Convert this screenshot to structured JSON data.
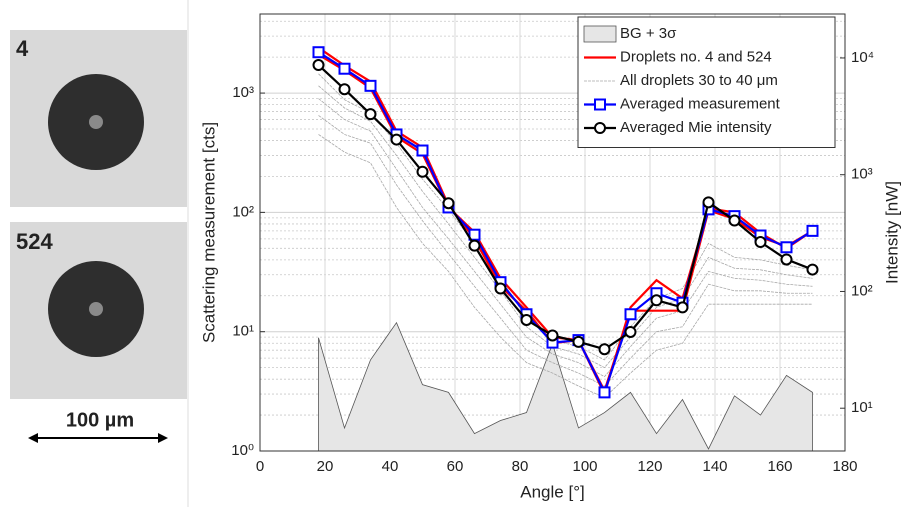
{
  "images": {
    "labels": [
      "4",
      "524"
    ],
    "scale_bar": "100 µm"
  },
  "chart_data": {
    "type": "line",
    "xlabel": "Angle  [°]",
    "ylabel": "Scattering measurement [cts]",
    "y2label": "Intensity [nW]",
    "x": [
      18,
      26,
      34,
      42,
      50,
      58,
      66,
      74,
      82,
      90,
      98,
      106,
      114,
      122,
      130,
      138,
      146,
      154,
      162,
      170
    ],
    "xlim": [
      0,
      180
    ],
    "xticks": [
      0,
      20,
      40,
      60,
      80,
      100,
      120,
      140,
      160,
      180
    ],
    "ylim": [
      1,
      4600
    ],
    "ylog": true,
    "yticks": [
      {
        "value": 1,
        "label": "10⁰"
      },
      {
        "value": 10,
        "label": "10¹"
      },
      {
        "value": 100,
        "label": "10²"
      },
      {
        "value": 1000,
        "label": "10³"
      }
    ],
    "y2lim": [
      4.3,
      23800
    ],
    "y2log": true,
    "y2ticks": [
      {
        "value": 10,
        "label": "10¹"
      },
      {
        "value": 100,
        "label": "10²"
      },
      {
        "value": 1000,
        "label": "10³"
      },
      {
        "value": 10000,
        "label": "10⁴"
      }
    ],
    "grid": true,
    "minor_grid": true,
    "legend": "upper right",
    "series": [
      {
        "name": "BG + 3σ",
        "style": "area",
        "color": "#e6e6e6",
        "values": [
          8.9,
          1.56,
          5.8,
          11.9,
          3.6,
          3.1,
          1.4,
          1.8,
          2.1,
          7.9,
          1.56,
          2.1,
          3.1,
          1.4,
          2.7,
          1.04,
          2.9,
          2.0,
          4.3,
          3.1
        ]
      },
      {
        "name": "Droplets no. 4 and 524",
        "style": "line",
        "color": "#ff0000",
        "lines": [
          [
            2400,
            1700,
            1250,
            480,
            350,
            115,
            60,
            24,
            15,
            8,
            8.5,
            3,
            16,
            27,
            19,
            108,
            100,
            67,
            50,
            70
          ],
          [
            2100,
            1550,
            1100,
            430,
            310,
            110,
            68,
            28,
            16,
            9,
            8.5,
            3.2,
            15,
            15,
            15,
            104,
            88,
            62,
            52,
            70
          ]
        ]
      },
      {
        "name": "All droplets 30 to 40 μm",
        "style": "thin",
        "color": "#a8a8a8",
        "lines": [
          [
            450,
            320,
            260,
            110,
            55,
            32,
            16,
            9,
            5.5,
            4.5,
            3.5,
            2.8,
            4.5,
            7,
            8,
            17,
            17,
            17,
            17,
            17
          ],
          [
            650,
            450,
            380,
            170,
            85,
            45,
            24,
            13,
            7,
            5.5,
            4.5,
            3.5,
            6,
            10,
            11,
            25,
            22,
            22,
            21,
            21
          ],
          [
            900,
            600,
            480,
            230,
            110,
            60,
            32,
            17,
            9,
            6.5,
            5.5,
            4.2,
            7.5,
            13,
            15,
            32,
            28,
            27,
            25,
            24
          ],
          [
            1150,
            750,
            580,
            300,
            150,
            80,
            42,
            22,
            11,
            7.5,
            6.5,
            5,
            9,
            16,
            19,
            42,
            34,
            33,
            30,
            28
          ],
          [
            1450,
            880,
            680,
            380,
            190,
            105,
            55,
            28,
            13,
            8.5,
            7.5,
            5.8,
            11,
            19,
            23,
            55,
            42,
            40,
            36,
            33
          ]
        ]
      },
      {
        "name": "Averaged measurement",
        "style": "line",
        "marker": "square",
        "color": "#0000ff",
        "values": [
          2200,
          1600,
          1150,
          450,
          330,
          110,
          65,
          26,
          14,
          8.1,
          8.5,
          3.1,
          14,
          21,
          17.5,
          106,
          93,
          64,
          51,
          70
        ]
      },
      {
        "name": "Averaged Mie intensity",
        "style": "line",
        "marker": "circle",
        "color": "#000000",
        "axis": "y2",
        "values": [
          8700,
          5400,
          3300,
          2000,
          1060,
          570,
          247,
          106,
          57,
          42,
          37,
          32,
          45,
          84,
          73,
          580,
          405,
          265,
          188,
          154
        ]
      }
    ]
  }
}
